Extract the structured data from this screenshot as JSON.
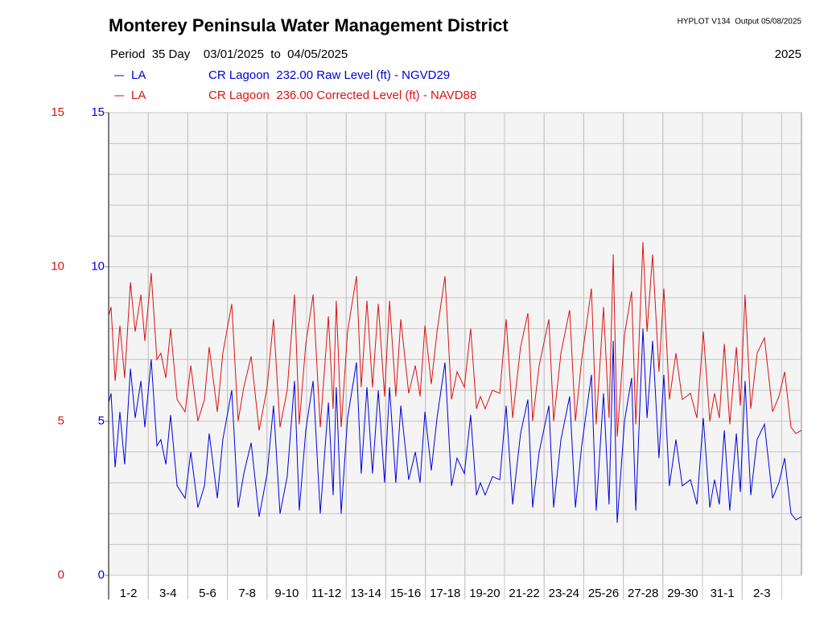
{
  "chart_data": {
    "type": "line",
    "title": "Monterey Peninsula Water Management District",
    "program_note": "HYPLOT V134  Output 05/08/2025",
    "period": "Period  35 Day    03/01/2025  to  04/05/2025",
    "year": "2025",
    "x": [
      0,
      0.12,
      0.33,
      0.57,
      0.81,
      1.1,
      1.34,
      1.63,
      1.83,
      2.15,
      2.44,
      2.64,
      2.89,
      3.13,
      3.46,
      3.86,
      4.15,
      4.51,
      4.84,
      5.08,
      5.49,
      5.77,
      6.22,
      6.54,
      6.83,
      7.2,
      7.6,
      8.01,
      8.33,
      8.66,
      9.02,
      9.39,
      9.63,
      9.96,
      10.33,
      10.69,
      11.1,
      11.34,
      11.5,
      11.75,
      12.07,
      12.52,
      12.76,
      13.05,
      13.33,
      13.62,
      13.94,
      14.19,
      14.51,
      14.76,
      15.16,
      15.49,
      15.73,
      15.98,
      16.3,
      16.59,
      16.99,
      17.32,
      17.6,
      17.97,
      18.29,
      18.58,
      18.78,
      19.02,
      19.39,
      19.76,
      20.08,
      20.41,
      20.81,
      21.18,
      21.42,
      21.75,
      22.24,
      22.48,
      22.85,
      23.29,
      23.58,
      23.9,
      24.39,
      24.63,
      25.0,
      25.28,
      25.49,
      25.69,
      26.06,
      26.42,
      26.63,
      26.99,
      27.2,
      27.48,
      27.8,
      28.05,
      28.33,
      28.66,
      28.98,
      29.39,
      29.72,
      30.04,
      30.37,
      30.61,
      30.85,
      31.1,
      31.38,
      31.71,
      31.91,
      32.15,
      32.44,
      32.76,
      33.13,
      33.54,
      33.86,
      34.15,
      34.47,
      34.72,
      35.0
    ],
    "xlim": [
      0,
      35
    ],
    "xticks": [
      {
        "value": 1,
        "label": "1-2"
      },
      {
        "value": 3,
        "label": "3-4"
      },
      {
        "value": 5,
        "label": "5-6"
      },
      {
        "value": 7,
        "label": "7-8"
      },
      {
        "value": 9,
        "label": "9-10"
      },
      {
        "value": 11,
        "label": "11-12"
      },
      {
        "value": 13,
        "label": "13-14"
      },
      {
        "value": 15,
        "label": "15-16"
      },
      {
        "value": 17,
        "label": "17-18"
      },
      {
        "value": 19,
        "label": "19-20"
      },
      {
        "value": 21,
        "label": "21-22"
      },
      {
        "value": 23,
        "label": "23-24"
      },
      {
        "value": 25,
        "label": "25-26"
      },
      {
        "value": 27,
        "label": "27-28"
      },
      {
        "value": 29,
        "label": "29-30"
      },
      {
        "value": 31,
        "label": "31-1"
      },
      {
        "value": 33,
        "label": "2-3"
      }
    ],
    "ylim": [
      0,
      15
    ],
    "yticks": [
      0,
      5,
      10,
      15
    ],
    "y2lim": [
      0,
      15
    ],
    "y2ticks": [
      0,
      5,
      10,
      15
    ],
    "minor_yticks": [
      1,
      2,
      3,
      4,
      6,
      7,
      8,
      9,
      11,
      12,
      13,
      14
    ],
    "grid": true,
    "series": [
      {
        "site": "LA",
        "name": "CR Lagoon  232.00 Raw Level (ft) - NGVD29",
        "color": "#0000dd",
        "axis": "y2",
        "values": [
          5.6,
          5.9,
          3.5,
          5.3,
          3.6,
          6.7,
          5.1,
          6.3,
          4.8,
          7.0,
          4.2,
          4.4,
          3.6,
          5.2,
          2.9,
          2.5,
          4.0,
          2.2,
          2.9,
          4.6,
          2.5,
          4.4,
          6.0,
          2.2,
          3.3,
          4.3,
          1.9,
          3.3,
          5.5,
          2.0,
          3.2,
          6.3,
          2.1,
          4.7,
          6.3,
          2.0,
          5.6,
          2.6,
          6.1,
          2.0,
          5.1,
          6.9,
          3.3,
          6.1,
          3.3,
          6.0,
          3.0,
          6.1,
          3.0,
          5.5,
          3.1,
          4.0,
          3.0,
          5.3,
          3.4,
          5.1,
          6.9,
          2.9,
          3.8,
          3.3,
          5.2,
          2.6,
          3.0,
          2.6,
          3.2,
          3.1,
          5.5,
          2.3,
          4.6,
          5.7,
          2.2,
          4.0,
          5.5,
          2.2,
          4.4,
          5.8,
          2.2,
          4.2,
          6.5,
          2.1,
          5.9,
          2.3,
          7.6,
          1.7,
          5.0,
          6.4,
          2.1,
          8.0,
          5.1,
          7.6,
          3.8,
          6.5,
          2.9,
          4.4,
          2.9,
          3.1,
          2.3,
          5.1,
          2.2,
          3.1,
          2.3,
          4.7,
          2.1,
          4.6,
          2.7,
          6.3,
          2.6,
          4.4,
          4.9,
          2.5,
          3.0,
          3.8,
          2.0,
          1.8,
          1.9
        ]
      },
      {
        "site": "LA",
        "name": "CR Lagoon  236.00 Corrected Level (ft) - NAVD88",
        "color": "#dd1111",
        "axis": "y",
        "values": [
          8.4,
          8.7,
          6.3,
          8.1,
          6.4,
          9.5,
          7.9,
          9.1,
          7.6,
          9.8,
          7.0,
          7.2,
          6.4,
          8.0,
          5.7,
          5.3,
          6.8,
          5.0,
          5.7,
          7.4,
          5.3,
          7.2,
          8.8,
          5.0,
          6.1,
          7.1,
          4.7,
          6.1,
          8.3,
          4.8,
          6.0,
          9.1,
          4.9,
          7.5,
          9.1,
          4.8,
          8.4,
          5.4,
          8.9,
          4.8,
          7.9,
          9.7,
          6.1,
          8.9,
          6.1,
          8.8,
          5.8,
          8.9,
          5.8,
          8.3,
          5.9,
          6.8,
          5.8,
          8.1,
          6.2,
          7.9,
          9.7,
          5.7,
          6.6,
          6.1,
          8.0,
          5.4,
          5.8,
          5.4,
          6.0,
          5.9,
          8.3,
          5.1,
          7.4,
          8.5,
          5.0,
          6.8,
          8.3,
          5.0,
          7.2,
          8.6,
          5.0,
          7.0,
          9.3,
          4.9,
          8.7,
          5.1,
          10.4,
          4.5,
          7.8,
          9.2,
          4.9,
          10.8,
          7.9,
          10.4,
          6.6,
          9.3,
          5.7,
          7.2,
          5.7,
          5.9,
          5.1,
          7.9,
          5.0,
          5.9,
          5.1,
          7.5,
          4.9,
          7.4,
          5.5,
          9.1,
          5.4,
          7.2,
          7.7,
          5.3,
          5.8,
          6.6,
          4.8,
          4.6,
          4.7
        ]
      }
    ]
  }
}
